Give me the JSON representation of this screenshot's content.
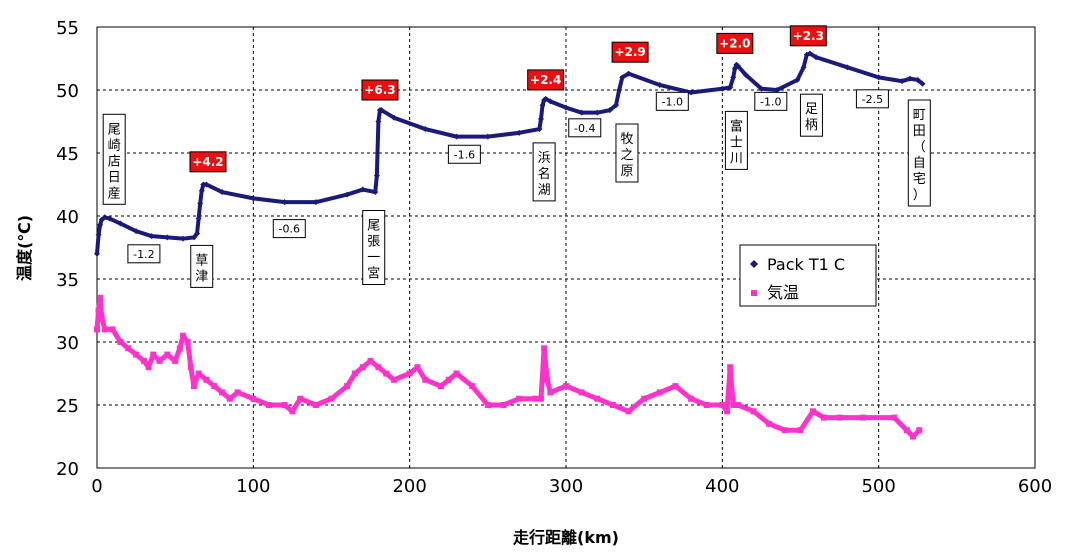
{
  "chart_data": {
    "type": "line",
    "xlabel": "走行距離(km)",
    "ylabel": "温度(℃)",
    "xlim": [
      0,
      600
    ],
    "ylim": [
      20,
      55
    ],
    "x_ticks": [
      0,
      100,
      200,
      300,
      400,
      500,
      600
    ],
    "y_ticks": [
      20,
      25,
      30,
      35,
      40,
      45,
      50,
      55
    ],
    "grid": true,
    "legend_position": "right",
    "series": [
      {
        "name": "Pack T1 C",
        "color": "#1a1a7a",
        "marker": "diamond",
        "x": [
          0,
          1,
          2,
          3,
          5,
          8,
          15,
          25,
          35,
          45,
          55,
          62,
          64,
          65,
          66,
          67,
          68,
          70,
          80,
          100,
          120,
          140,
          160,
          170,
          178,
          179,
          180,
          181,
          182,
          190,
          210,
          230,
          250,
          270,
          283,
          284,
          285,
          286,
          287,
          290,
          300,
          310,
          320,
          328,
          332,
          334,
          336,
          340,
          360,
          380,
          400,
          405,
          407,
          408,
          409,
          410,
          415,
          425,
          435,
          448,
          452,
          454,
          456,
          460,
          480,
          500,
          515,
          520,
          525,
          528
        ],
        "y": [
          37.0,
          38.5,
          39.3,
          39.7,
          39.9,
          39.8,
          39.4,
          38.8,
          38.4,
          38.3,
          38.2,
          38.3,
          38.6,
          39.8,
          41.0,
          42.0,
          42.5,
          42.5,
          41.9,
          41.4,
          41.1,
          41.1,
          41.7,
          42.1,
          41.9,
          43.2,
          47.5,
          48.4,
          48.4,
          47.8,
          46.9,
          46.3,
          46.3,
          46.6,
          46.9,
          47.7,
          48.8,
          49.2,
          49.3,
          49.1,
          48.6,
          48.2,
          48.2,
          48.4,
          48.8,
          50.0,
          51.0,
          51.3,
          50.4,
          49.8,
          50.1,
          50.2,
          51.0,
          51.7,
          52.0,
          51.9,
          51.2,
          50.1,
          50.0,
          50.8,
          51.8,
          52.8,
          52.9,
          52.6,
          51.8,
          51.0,
          50.7,
          50.9,
          50.8,
          50.5
        ]
      },
      {
        "name": "気温",
        "color": "#ff33cc",
        "marker": "square",
        "x": [
          0,
          1,
          2,
          3,
          5,
          10,
          15,
          20,
          25,
          30,
          33,
          36,
          40,
          45,
          50,
          53,
          55,
          58,
          60,
          62,
          65,
          70,
          75,
          80,
          85,
          90,
          100,
          110,
          120,
          125,
          130,
          140,
          150,
          160,
          165,
          170,
          175,
          180,
          185,
          190,
          200,
          205,
          210,
          220,
          225,
          230,
          240,
          250,
          260,
          270,
          280,
          284,
          286,
          288,
          290,
          300,
          310,
          320,
          330,
          340,
          350,
          360,
          370,
          380,
          390,
          400,
          403,
          405,
          407,
          410,
          420,
          430,
          440,
          450,
          458,
          465,
          475,
          490,
          510,
          518,
          522,
          526
        ],
        "y": [
          31.0,
          32.5,
          33.5,
          32.0,
          31.0,
          31.0,
          30.0,
          29.5,
          29.0,
          28.5,
          28.0,
          29.0,
          28.5,
          29.0,
          28.5,
          29.5,
          30.5,
          30.0,
          28.0,
          26.5,
          27.5,
          27.0,
          26.5,
          26.0,
          25.5,
          26.0,
          25.5,
          25.0,
          25.0,
          24.5,
          25.5,
          25.0,
          25.5,
          26.5,
          27.5,
          28.0,
          28.5,
          28.0,
          27.5,
          27.0,
          27.5,
          28.0,
          27.0,
          26.5,
          27.0,
          27.5,
          26.5,
          25.0,
          25.0,
          25.5,
          25.5,
          25.5,
          29.5,
          27.0,
          26.0,
          26.5,
          26.0,
          25.5,
          25.0,
          24.5,
          25.5,
          26.0,
          26.5,
          25.5,
          25.0,
          25.0,
          24.5,
          28.0,
          25.0,
          25.0,
          24.5,
          23.5,
          23.0,
          23.0,
          24.5,
          24.0,
          24.0,
          24.0,
          24.0,
          23.0,
          22.5,
          23.0
        ]
      }
    ],
    "annotations": {
      "locations": [
        {
          "text": "尾崎店日産",
          "x": 11,
          "y": 44.5
        },
        {
          "text": "草津",
          "x": 67,
          "y": 36.0
        },
        {
          "text": "尾張一宮",
          "x": 177,
          "y": 37.5
        },
        {
          "text": "浜名湖",
          "x": 286,
          "y": 43.5
        },
        {
          "text": "牧之原",
          "x": 339,
          "y": 45.0
        },
        {
          "text": "富士川",
          "x": 409,
          "y": 46.0
        },
        {
          "text": "足柄",
          "x": 457,
          "y": 48.0
        },
        {
          "text": "町田（自宅）",
          "x": 526,
          "y": 45.0
        }
      ],
      "rises": [
        {
          "text": "+4.2",
          "x": 71,
          "y": 44.3
        },
        {
          "text": "+6.3",
          "x": 181,
          "y": 50.0
        },
        {
          "text": "+2.4",
          "x": 287,
          "y": 50.8
        },
        {
          "text": "+2.9",
          "x": 341,
          "y": 53.0
        },
        {
          "text": "+2.0",
          "x": 408,
          "y": 53.7
        },
        {
          "text": "+2.3",
          "x": 455,
          "y": 54.3
        }
      ],
      "drops": [
        {
          "text": "-1.2",
          "x": 30,
          "y": 37.0
        },
        {
          "text": "-0.6",
          "x": 123,
          "y": 39.0
        },
        {
          "text": "-1.6",
          "x": 235,
          "y": 44.9
        },
        {
          "text": "-0.4",
          "x": 312,
          "y": 47.0
        },
        {
          "text": "-1.0",
          "x": 368,
          "y": 49.1
        },
        {
          "text": "-1.0",
          "x": 431,
          "y": 49.1
        },
        {
          "text": "-2.5",
          "x": 496,
          "y": 49.3
        }
      ]
    }
  }
}
